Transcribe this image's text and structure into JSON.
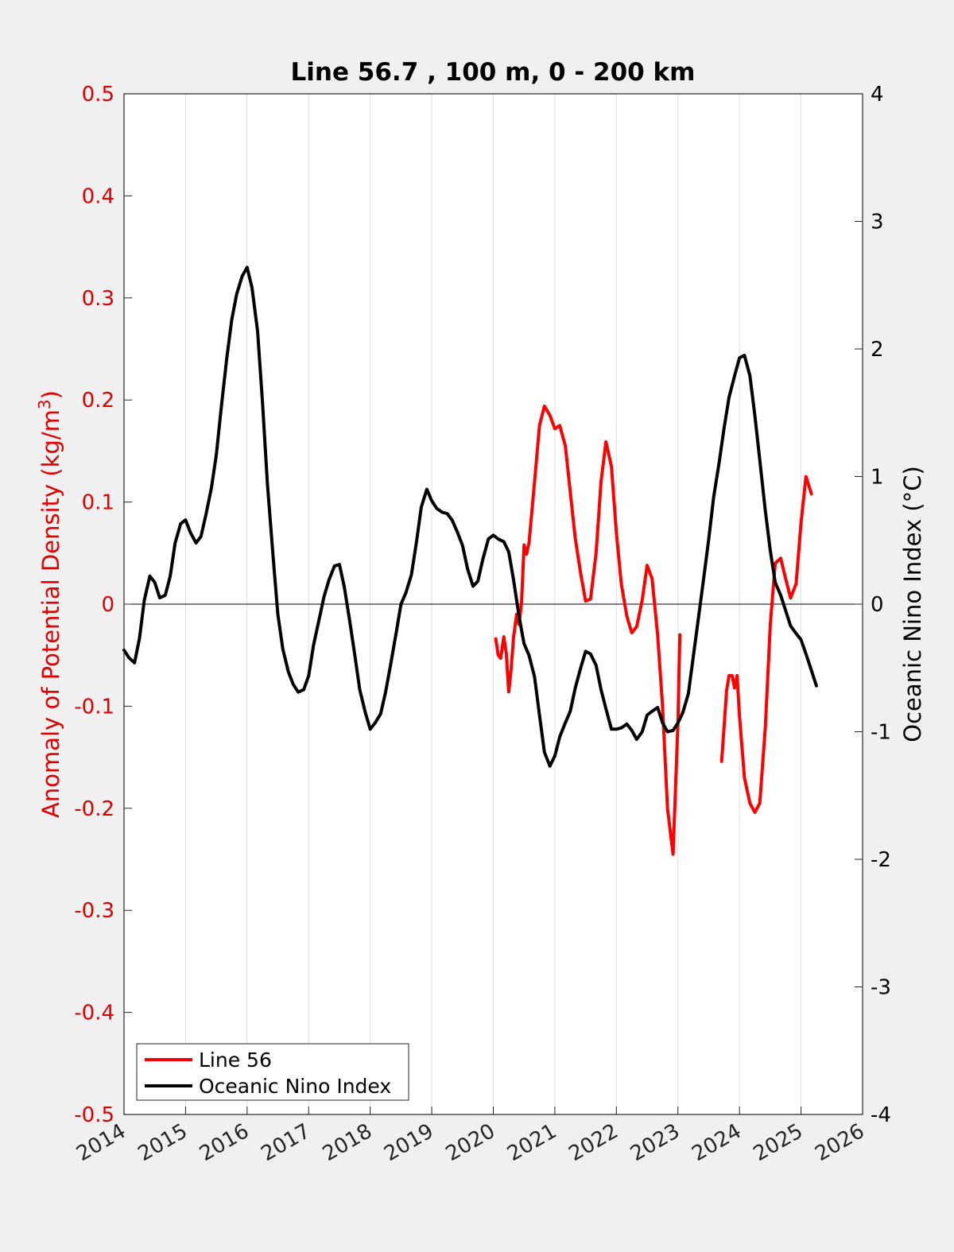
{
  "chart_data": {
    "type": "line",
    "title": "Line 56.7 , 100 m, 0 - 200 km",
    "ylabel_left": "Anomaly of Potential Density (kg/m",
    "ylabel_left_sup": "3",
    "ylabel_left_close": ")",
    "ylabel_right": "Oceanic Nino Index (°C)",
    "xlim": [
      2014,
      2026
    ],
    "ylim_left": [
      -0.5,
      0.5
    ],
    "ylim_right": [
      -4,
      4
    ],
    "x_ticks": [
      2014,
      2015,
      2016,
      2017,
      2018,
      2019,
      2020,
      2021,
      2022,
      2023,
      2024,
      2025,
      2026
    ],
    "x_tick_labels": [
      "2014",
      "2015",
      "2016",
      "2017",
      "2018",
      "2019",
      "2020",
      "2021",
      "2022",
      "2023",
      "2024",
      "2025",
      "2026"
    ],
    "y_left_ticks": [
      0.5,
      0.4,
      0.3,
      0.2,
      0.1,
      0,
      -0.1,
      -0.2,
      -0.3,
      -0.4,
      -0.5
    ],
    "y_left_tick_labels": [
      "0.5",
      "0.4",
      "0.3",
      "0.2",
      "0.1",
      "0",
      "-0.1",
      "-0.2",
      "-0.3",
      "-0.4",
      "-0.5"
    ],
    "y_right_ticks": [
      4,
      3,
      2,
      1,
      0,
      -1,
      -2,
      -3,
      -4
    ],
    "y_right_tick_labels": [
      "4",
      "3",
      "2",
      "1",
      "0",
      "-1",
      "-2",
      "-3",
      "-4"
    ],
    "grid": "vertical",
    "zero_line": true,
    "legend_position": "bottom-left",
    "colors": {
      "line56": "#ff0000",
      "oni": "#000000",
      "left_axis": "#e00000",
      "right_axis": "#000000",
      "grid": "#e0e0e0",
      "background": "#ffffff",
      "figure": "#f0f0f0"
    },
    "series": [
      {
        "name": "Line 56",
        "axis": "left",
        "color": "#ff0000",
        "segments": [
          [
            [
              2020.04,
              -0.034
            ],
            [
              2020.08,
              -0.05
            ],
            [
              2020.12,
              -0.053
            ],
            [
              2020.17,
              -0.032
            ],
            [
              2020.21,
              -0.048
            ],
            [
              2020.25,
              -0.086
            ],
            [
              2020.29,
              -0.063
            ],
            [
              2020.33,
              -0.032
            ],
            [
              2020.38,
              -0.01
            ],
            [
              2020.42,
              -0.02
            ],
            [
              2020.46,
              0.003
            ],
            [
              2020.5,
              0.058
            ],
            [
              2020.54,
              0.049
            ],
            [
              2020.58,
              0.06
            ],
            [
              2020.67,
              0.12
            ],
            [
              2020.75,
              0.175
            ],
            [
              2020.83,
              0.194
            ],
            [
              2020.92,
              0.185
            ],
            [
              2021.0,
              0.172
            ],
            [
              2021.08,
              0.175
            ],
            [
              2021.17,
              0.155
            ],
            [
              2021.25,
              0.11
            ],
            [
              2021.33,
              0.065
            ],
            [
              2021.42,
              0.03
            ],
            [
              2021.5,
              0.003
            ],
            [
              2021.58,
              0.005
            ],
            [
              2021.67,
              0.05
            ],
            [
              2021.75,
              0.12
            ],
            [
              2021.83,
              0.159
            ],
            [
              2021.92,
              0.135
            ],
            [
              2022.0,
              0.07
            ],
            [
              2022.08,
              0.02
            ],
            [
              2022.17,
              -0.012
            ],
            [
              2022.25,
              -0.028
            ],
            [
              2022.33,
              -0.022
            ],
            [
              2022.42,
              0.004
            ],
            [
              2022.5,
              0.038
            ],
            [
              2022.58,
              0.025
            ],
            [
              2022.67,
              -0.03
            ],
            [
              2022.75,
              -0.1
            ],
            [
              2022.83,
              -0.2
            ],
            [
              2022.92,
              -0.245
            ],
            [
              2023.0,
              -0.115
            ],
            [
              2023.03,
              -0.03
            ]
          ],
          [
            [
              2023.71,
              -0.154
            ],
            [
              2023.75,
              -0.12
            ],
            [
              2023.79,
              -0.085
            ],
            [
              2023.83,
              -0.07
            ],
            [
              2023.88,
              -0.07
            ],
            [
              2023.92,
              -0.082
            ],
            [
              2023.96,
              -0.07
            ],
            [
              2024.0,
              -0.11
            ],
            [
              2024.08,
              -0.17
            ],
            [
              2024.17,
              -0.195
            ],
            [
              2024.25,
              -0.204
            ],
            [
              2024.33,
              -0.195
            ],
            [
              2024.42,
              -0.12
            ],
            [
              2024.5,
              -0.02
            ],
            [
              2024.58,
              0.04
            ],
            [
              2024.67,
              0.045
            ],
            [
              2024.75,
              0.025
            ],
            [
              2024.83,
              0.006
            ],
            [
              2024.92,
              0.02
            ],
            [
              2025.0,
              0.08
            ],
            [
              2025.08,
              0.125
            ],
            [
              2025.17,
              0.108
            ]
          ]
        ]
      },
      {
        "name": "Oceanic Nino Index",
        "axis": "right",
        "color": "#000000",
        "segments": [
          [
            [
              2014.0,
              -0.36
            ],
            [
              2014.08,
              -0.42
            ],
            [
              2014.17,
              -0.46
            ],
            [
              2014.25,
              -0.27
            ],
            [
              2014.33,
              0.03
            ],
            [
              2014.42,
              0.22
            ],
            [
              2014.5,
              0.17
            ],
            [
              2014.58,
              0.05
            ],
            [
              2014.67,
              0.07
            ],
            [
              2014.75,
              0.22
            ],
            [
              2014.83,
              0.48
            ],
            [
              2014.92,
              0.63
            ],
            [
              2015.0,
              0.66
            ],
            [
              2015.08,
              0.56
            ],
            [
              2015.17,
              0.48
            ],
            [
              2015.25,
              0.53
            ],
            [
              2015.33,
              0.7
            ],
            [
              2015.42,
              0.91
            ],
            [
              2015.5,
              1.17
            ],
            [
              2015.58,
              1.54
            ],
            [
              2015.67,
              1.93
            ],
            [
              2015.75,
              2.23
            ],
            [
              2015.83,
              2.43
            ],
            [
              2015.92,
              2.57
            ],
            [
              2016.0,
              2.64
            ],
            [
              2016.08,
              2.48
            ],
            [
              2016.17,
              2.14
            ],
            [
              2016.25,
              1.58
            ],
            [
              2016.33,
              0.94
            ],
            [
              2016.42,
              0.39
            ],
            [
              2016.5,
              -0.08
            ],
            [
              2016.58,
              -0.35
            ],
            [
              2016.67,
              -0.53
            ],
            [
              2016.75,
              -0.63
            ],
            [
              2016.83,
              -0.69
            ],
            [
              2016.92,
              -0.67
            ],
            [
              2017.0,
              -0.56
            ],
            [
              2017.08,
              -0.32
            ],
            [
              2017.17,
              -0.12
            ],
            [
              2017.25,
              0.06
            ],
            [
              2017.33,
              0.19
            ],
            [
              2017.42,
              0.3
            ],
            [
              2017.5,
              0.31
            ],
            [
              2017.58,
              0.13
            ],
            [
              2017.67,
              -0.14
            ],
            [
              2017.75,
              -0.4
            ],
            [
              2017.83,
              -0.67
            ],
            [
              2017.92,
              -0.85
            ],
            [
              2018.0,
              -0.98
            ],
            [
              2018.08,
              -0.93
            ],
            [
              2018.17,
              -0.86
            ],
            [
              2018.25,
              -0.69
            ],
            [
              2018.33,
              -0.48
            ],
            [
              2018.42,
              -0.23
            ],
            [
              2018.5,
              0.0
            ],
            [
              2018.58,
              0.09
            ],
            [
              2018.67,
              0.23
            ],
            [
              2018.75,
              0.48
            ],
            [
              2018.83,
              0.76
            ],
            [
              2018.92,
              0.9
            ],
            [
              2019.0,
              0.81
            ],
            [
              2019.08,
              0.75
            ],
            [
              2019.17,
              0.72
            ],
            [
              2019.25,
              0.71
            ],
            [
              2019.33,
              0.66
            ],
            [
              2019.42,
              0.56
            ],
            [
              2019.5,
              0.46
            ],
            [
              2019.58,
              0.28
            ],
            [
              2019.67,
              0.14
            ],
            [
              2019.75,
              0.18
            ],
            [
              2019.83,
              0.35
            ],
            [
              2019.92,
              0.51
            ],
            [
              2020.0,
              0.54
            ],
            [
              2020.08,
              0.51
            ],
            [
              2020.17,
              0.49
            ],
            [
              2020.25,
              0.41
            ],
            [
              2020.33,
              0.19
            ],
            [
              2020.42,
              -0.1
            ],
            [
              2020.5,
              -0.31
            ],
            [
              2020.58,
              -0.4
            ],
            [
              2020.67,
              -0.57
            ],
            [
              2020.75,
              -0.87
            ],
            [
              2020.83,
              -1.16
            ],
            [
              2020.92,
              -1.27
            ],
            [
              2021.0,
              -1.19
            ],
            [
              2021.08,
              -1.04
            ],
            [
              2021.17,
              -0.93
            ],
            [
              2021.25,
              -0.84
            ],
            [
              2021.33,
              -0.66
            ],
            [
              2021.42,
              -0.5
            ],
            [
              2021.5,
              -0.37
            ],
            [
              2021.58,
              -0.39
            ],
            [
              2021.67,
              -0.48
            ],
            [
              2021.75,
              -0.67
            ],
            [
              2021.83,
              -0.82
            ],
            [
              2021.92,
              -0.98
            ],
            [
              2022.0,
              -0.98
            ],
            [
              2022.08,
              -0.97
            ],
            [
              2022.17,
              -0.94
            ],
            [
              2022.25,
              -0.99
            ],
            [
              2022.33,
              -1.06
            ],
            [
              2022.42,
              -1.0
            ],
            [
              2022.5,
              -0.87
            ],
            [
              2022.58,
              -0.84
            ],
            [
              2022.67,
              -0.81
            ],
            [
              2022.75,
              -0.93
            ],
            [
              2022.83,
              -1.0
            ],
            [
              2022.92,
              -0.99
            ],
            [
              2023.0,
              -0.93
            ],
            [
              2023.08,
              -0.85
            ],
            [
              2023.17,
              -0.7
            ],
            [
              2023.25,
              -0.41
            ],
            [
              2023.33,
              -0.12
            ],
            [
              2023.42,
              0.21
            ],
            [
              2023.5,
              0.51
            ],
            [
              2023.58,
              0.84
            ],
            [
              2023.67,
              1.11
            ],
            [
              2023.75,
              1.38
            ],
            [
              2023.83,
              1.62
            ],
            [
              2023.92,
              1.79
            ],
            [
              2024.0,
              1.93
            ],
            [
              2024.08,
              1.95
            ],
            [
              2024.17,
              1.79
            ],
            [
              2024.25,
              1.48
            ],
            [
              2024.33,
              1.13
            ],
            [
              2024.42,
              0.73
            ],
            [
              2024.5,
              0.42
            ],
            [
              2024.58,
              0.17
            ],
            [
              2024.67,
              0.07
            ],
            [
              2024.75,
              -0.05
            ],
            [
              2024.83,
              -0.17
            ],
            [
              2024.92,
              -0.23
            ],
            [
              2025.0,
              -0.28
            ],
            [
              2025.08,
              -0.39
            ],
            [
              2025.17,
              -0.52
            ],
            [
              2025.25,
              -0.64
            ]
          ]
        ]
      }
    ],
    "legend": [
      {
        "label": "Line 56",
        "color": "#ff0000"
      },
      {
        "label": "Oceanic Nino Index",
        "color": "#000000"
      }
    ]
  }
}
